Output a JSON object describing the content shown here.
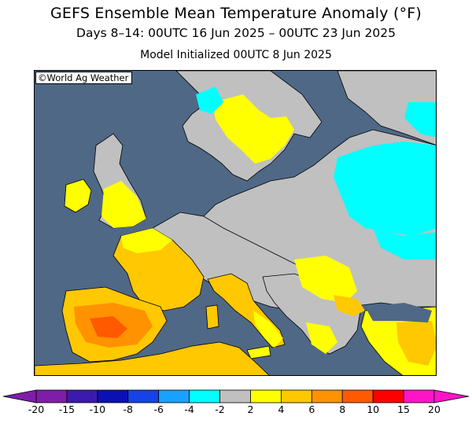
{
  "header": {
    "title": "GEFS Ensemble Mean Temperature Anomaly (°F)",
    "subtitle": "Days 8–14: 00UTC 16 Jun 2025 – 00UTC 23 Jun 2025",
    "init": "Model Initialized 00UTC 8 Jun 2025"
  },
  "map": {
    "credit": "©World Ag Weather",
    "region": "Europe",
    "colors": {
      "sea": "#4f6886",
      "neutral": "#c0c0c0",
      "lake": "#4f6886"
    }
  },
  "legend": {
    "labels": [
      "-20",
      "-15",
      "-10",
      "-8",
      "-6",
      "-4",
      "-2",
      "2",
      "4",
      "6",
      "8",
      "10",
      "15",
      "20"
    ],
    "colors": [
      "#7e1ea8",
      "#3c1ab0",
      "#0b10b4",
      "#1642e8",
      "#18a2ff",
      "#00ffff",
      "#c0c0c0",
      "#ffff00",
      "#ffc800",
      "#ff9200",
      "#ff5a00",
      "#ff0000",
      "#ff14c8"
    ]
  }
}
